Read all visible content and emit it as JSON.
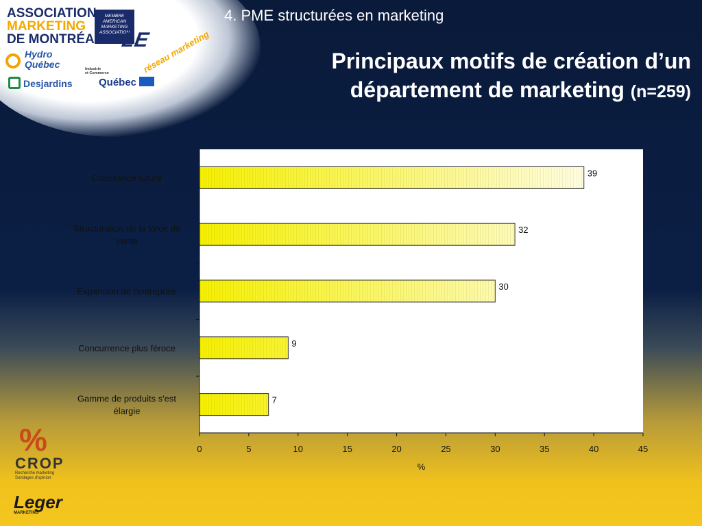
{
  "header": {
    "subtitle": "4. PME structurées en marketing",
    "title_line1": "Principaux motifs de création d’un",
    "title_line2": "département de marketing",
    "title_n": "(n=259)"
  },
  "logos": {
    "ama_line1": "ASSOCIATION",
    "ama_line2": "MARKETING",
    "ama_line3": "DE MONTRÉAL",
    "ama_badge": "MEMBRE AMERICAN MARKETING ASSOCIATION",
    "le": "LE",
    "le_reseau": "réseau marketing",
    "hydro_line1": "Hydro",
    "hydro_line2": "Québec",
    "desjardins": "Desjardins",
    "ic_line1": "Industrie",
    "ic_line2": "et Commerce",
    "quebec": "Québec",
    "crop_name": "CROP",
    "crop_tag1": "Recherche marketing",
    "crop_tag2": "Sondages d'opinion",
    "leger": "Leger",
    "leger_sub": "MARKETING"
  },
  "chart_data": {
    "type": "bar",
    "orientation": "horizontal",
    "categories": [
      "Croissance future",
      "Structuration de la force de vente",
      "Expansion de l'entreprise",
      "Concurrence plus féroce",
      "Gamme de produits s'est élargie"
    ],
    "category_lines": [
      [
        "Croissance future"
      ],
      [
        "Structuration de la force de",
        "vente"
      ],
      [
        "Expansion de l'entreprise"
      ],
      [
        "Concurrence plus féroce"
      ],
      [
        "Gamme de produits s'est",
        "élargie"
      ]
    ],
    "values": [
      39,
      32,
      30,
      9,
      7
    ],
    "value_labels": [
      "39",
      "32",
      "30",
      "9",
      "7"
    ],
    "xlim": [
      0,
      45
    ],
    "xticks": [
      0,
      5,
      10,
      15,
      20,
      25,
      30,
      35,
      40,
      45
    ],
    "xlabel": "%",
    "ylabel": "",
    "title": "",
    "legend": "none",
    "grid": false,
    "colors": {
      "bar_start": "#f6f000",
      "bar_end": "#fffde0",
      "bar_stroke": "#333333",
      "axis": "#111111",
      "label_text": "#111111",
      "plot_bg": "#ffffff"
    }
  }
}
